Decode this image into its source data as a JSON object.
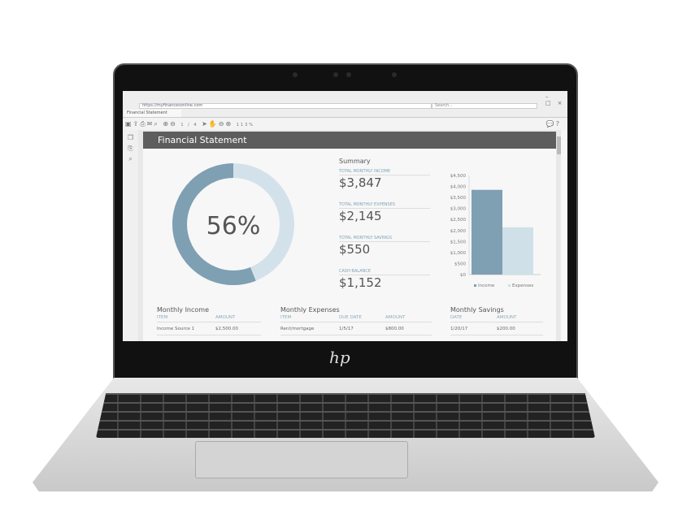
{
  "browser": {
    "url": "https://myfinancesonline.com",
    "search_placeholder": "Search...",
    "tab": "Financial Statement",
    "page_indicator": "1 / 4",
    "zoom": "113%"
  },
  "document": {
    "title": "Financial Statement",
    "donut_percent": "56%",
    "donut_value": 56,
    "summary": {
      "heading": "Summary",
      "items": [
        {
          "label": "TOTAL MONTHLY INCOME",
          "value": "$3,847"
        },
        {
          "label": "TOTAL MONTHLY EXPENSES",
          "value": "$2,145"
        },
        {
          "label": "TOTAL MONTHLY SAVINGS",
          "value": "$550"
        },
        {
          "label": "CASH BALANCE",
          "value": "$1,152"
        }
      ]
    },
    "income": {
      "title": "Monthly Income",
      "headers": [
        "ITEM",
        "AMOUNT"
      ],
      "rows": [
        [
          "Income Source 1",
          "$2,500.00"
        ]
      ]
    },
    "expenses": {
      "title": "Monthly Expenses",
      "headers": [
        "ITEM",
        "DUE DATE",
        "AMOUNT"
      ],
      "rows": [
        [
          "Rent/mortgage",
          "1/5/17",
          "$800.00"
        ]
      ]
    },
    "savings": {
      "title": "Monthly Savings",
      "headers": [
        "DATE",
        "AMOUNT"
      ],
      "rows": [
        [
          "1/20/17",
          "$200.00"
        ]
      ]
    }
  },
  "chart_data": {
    "type": "bar",
    "categories": [
      "Income",
      "Expenses"
    ],
    "values": [
      3847,
      2145
    ],
    "ylim": [
      0,
      4500
    ],
    "yticks": [
      "$0",
      "$500",
      "$1,000",
      "$1,500",
      "$2,000",
      "$2,500",
      "$3,000",
      "$3,500",
      "$4,000",
      "$4,500"
    ],
    "legend": [
      "Income",
      "Expenses"
    ],
    "legend_position": "bottom",
    "colors": [
      "#7f9fb3",
      "#cfe0e8"
    ]
  },
  "colors": {
    "donut_dark": "#7f9fb3",
    "donut_light": "#d3e2ea",
    "header": "#5d5d5d"
  }
}
